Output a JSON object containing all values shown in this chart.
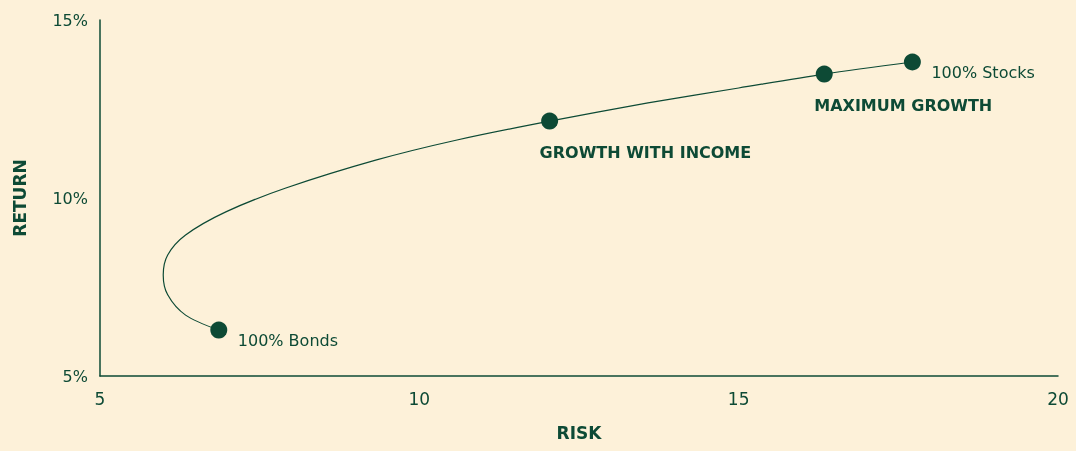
{
  "chart_data": {
    "type": "line",
    "xlabel": "RISK",
    "ylabel": "RETURN",
    "xlim": [
      5,
      20
    ],
    "xticks": [
      5,
      10,
      15,
      20
    ],
    "ylim": [
      5,
      15
    ],
    "yticks": [
      {
        "value": 5,
        "label": "5%"
      },
      {
        "value": 10,
        "label": "10%"
      },
      {
        "value": 15,
        "label": "15%"
      }
    ],
    "grid": false,
    "series": [
      {
        "color": "#0d4a35",
        "marker": "none",
        "x": [
          6.86,
          6.34,
          6.06,
          5.99,
          6.06,
          6.34,
          6.97,
          7.91,
          9.33,
          10.59,
          12.04,
          13.58,
          15.0,
          16.34,
          17.72
        ],
        "values": [
          6.29,
          6.71,
          7.28,
          7.84,
          8.4,
          8.96,
          9.61,
          10.28,
          11.07,
          11.63,
          12.16,
          12.67,
          13.09,
          13.48,
          13.82
        ]
      },
      {
        "type": "scatter",
        "color": "#0d4a35",
        "marker": "circle",
        "x": [
          6.86,
          12.04,
          16.34,
          17.72
        ],
        "values": [
          6.29,
          12.16,
          13.48,
          13.82
        ]
      }
    ],
    "annotations": [
      {
        "text": "100% Bonds",
        "x": 6.86,
        "y": 6.29
      },
      {
        "text": "GROWTH WITH INCOME",
        "x": 12.04,
        "y": 12.16
      },
      {
        "text": "MAXIMUM GROWTH",
        "x": 16.34,
        "y": 13.48
      },
      {
        "text": "100% Stocks",
        "x": 17.72,
        "y": 13.82
      }
    ]
  }
}
